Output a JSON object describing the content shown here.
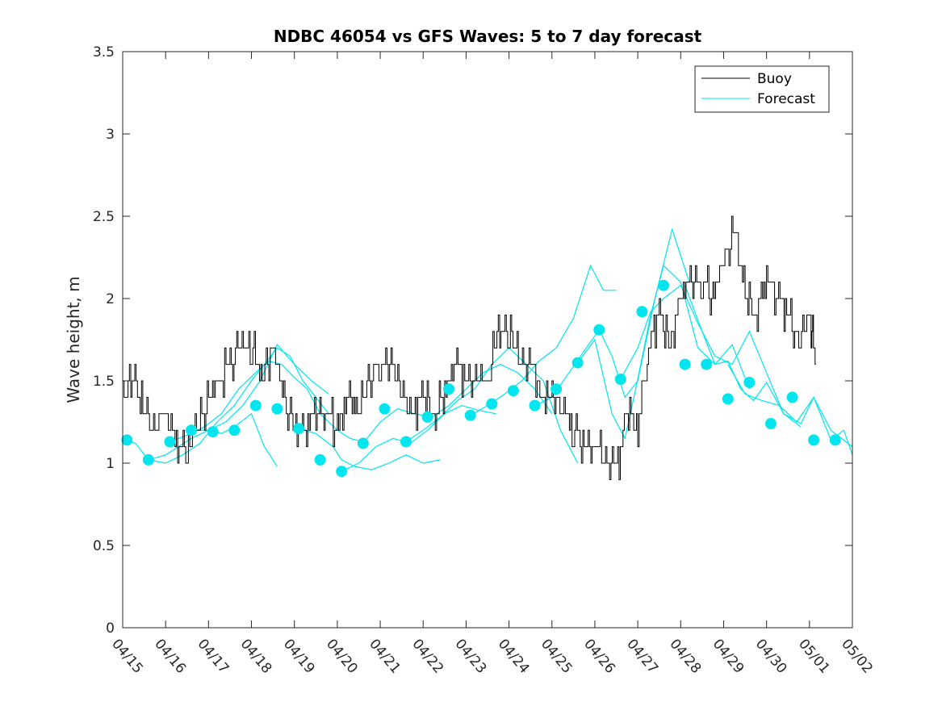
{
  "chart_data": {
    "type": "line",
    "title": "NDBC 46054 vs GFS Waves: 5 to 7 day forecast",
    "ylabel": "Wave height, m",
    "xlabel": "",
    "x_unit": "days (tick labels show MM/DD)",
    "xlim": [
      0,
      17
    ],
    "ylim": [
      0,
      3.5
    ],
    "xticks": [
      {
        "x": 0,
        "label": "04/15"
      },
      {
        "x": 1,
        "label": "04/16"
      },
      {
        "x": 2,
        "label": "04/17"
      },
      {
        "x": 3,
        "label": "04/18"
      },
      {
        "x": 4,
        "label": "04/19"
      },
      {
        "x": 5,
        "label": "04/20"
      },
      {
        "x": 6,
        "label": "04/21"
      },
      {
        "x": 7,
        "label": "04/22"
      },
      {
        "x": 8,
        "label": "04/23"
      },
      {
        "x": 9,
        "label": "04/24"
      },
      {
        "x": 10,
        "label": "04/25"
      },
      {
        "x": 11,
        "label": "04/26"
      },
      {
        "x": 12,
        "label": "04/27"
      },
      {
        "x": 13,
        "label": "04/28"
      },
      {
        "x": 14,
        "label": "04/29"
      },
      {
        "x": 15,
        "label": "04/30"
      },
      {
        "x": 16,
        "label": "05/01"
      },
      {
        "x": 17,
        "label": "05/02"
      }
    ],
    "yticks": [
      {
        "y": 0,
        "label": "0"
      },
      {
        "y": 0.5,
        "label": "0.5"
      },
      {
        "y": 1,
        "label": "1"
      },
      {
        "y": 1.5,
        "label": "1.5"
      },
      {
        "y": 2,
        "label": "2"
      },
      {
        "y": 2.5,
        "label": "2.5"
      },
      {
        "y": 3,
        "label": "3"
      },
      {
        "y": 3.5,
        "label": "3.5"
      }
    ],
    "legend": {
      "placement": "top-right",
      "entries": [
        {
          "label": "Buoy",
          "color": "#000000"
        },
        {
          "label": "Forecast",
          "color": "#00e5ee"
        }
      ]
    },
    "colors": {
      "buoy": "#000000",
      "forecast": "#00e5ee",
      "axes": "#262626"
    },
    "buoy": {
      "x": [
        0,
        0.25,
        0.5,
        0.75,
        1,
        1.25,
        1.5,
        1.75,
        2,
        2.25,
        2.5,
        2.75,
        3,
        3.25,
        3.5,
        3.75,
        4,
        4.25,
        4.5,
        4.75,
        5,
        5.25,
        5.5,
        5.75,
        6,
        6.25,
        6.5,
        6.75,
        7,
        7.25,
        7.5,
        7.75,
        8,
        8.25,
        8.5,
        8.75,
        9,
        9.25,
        9.5,
        9.75,
        10,
        10.25,
        10.5,
        10.75,
        11,
        11.25,
        11.5,
        11.75,
        12,
        12.25,
        12.5,
        12.75,
        13,
        13.25,
        13.5,
        13.75,
        14,
        14.25,
        14.5,
        14.75,
        15,
        15.25,
        15.5,
        15.75,
        16,
        16.15
      ],
      "y": [
        1.4,
        1.5,
        1.3,
        1.2,
        1.3,
        1.1,
        1.1,
        1.2,
        1.4,
        1.5,
        1.6,
        1.7,
        1.7,
        1.5,
        1.7,
        1.4,
        1.2,
        1.2,
        1.3,
        1.3,
        1.2,
        1.4,
        1.3,
        1.5,
        1.6,
        1.6,
        1.4,
        1.3,
        1.4,
        1.3,
        1.4,
        1.6,
        1.5,
        1.5,
        1.5,
        1.8,
        1.8,
        1.6,
        1.6,
        1.4,
        1.4,
        1.3,
        1.2,
        1.1,
        1.1,
        1.0,
        0.95,
        1.3,
        1.2,
        1.7,
        1.9,
        1.7,
        2.0,
        2.1,
        2.1,
        2.0,
        2.2,
        2.4,
        2.0,
        1.9,
        2.1,
        2.0,
        1.9,
        1.7,
        1.9,
        1.6
      ]
    },
    "forecast_points": {
      "x": [
        0.1,
        0.6,
        1.1,
        1.6,
        2.1,
        2.6,
        3.1,
        3.6,
        4.1,
        4.6,
        5.1,
        5.6,
        6.1,
        6.6,
        7.1,
        7.6,
        8.1,
        8.6,
        9.1,
        9.6,
        10.1,
        10.6,
        11.1,
        11.6,
        12.1,
        12.6,
        13.1,
        13.6,
        14.1,
        14.6,
        15.1,
        15.6,
        16.1,
        16.6
      ],
      "y": [
        1.14,
        1.02,
        1.13,
        1.2,
        1.19,
        1.2,
        1.35,
        1.33,
        1.21,
        1.02,
        0.95,
        1.12,
        1.33,
        1.13,
        1.28,
        1.45,
        1.29,
        1.36,
        1.44,
        1.35,
        1.45,
        1.61,
        1.81,
        1.51,
        1.92,
        2.08,
        1.6,
        1.6,
        1.39,
        1.49,
        1.24,
        1.4,
        1.14,
        1.14
      ]
    },
    "forecast_series": [
      {
        "x": [
          0,
          0.3,
          0.6,
          1,
          1.3,
          1.6,
          2,
          2.3,
          2.6,
          3,
          3.3,
          3.6
        ],
        "y": [
          1.14,
          1.12,
          1.02,
          1.05,
          1.1,
          1.15,
          1.2,
          1.18,
          1.22,
          1.3,
          1.1,
          0.98
        ]
      },
      {
        "x": [
          0.6,
          1,
          1.4,
          1.8,
          2.2,
          2.6,
          3,
          3.3,
          3.6,
          3.9,
          4.2,
          4.5,
          4.8
        ],
        "y": [
          1.02,
          1.0,
          1.05,
          1.12,
          1.25,
          1.35,
          1.5,
          1.6,
          1.7,
          1.65,
          1.5,
          1.4,
          1.3
        ]
      },
      {
        "x": [
          1.1,
          1.5,
          1.9,
          2.3,
          2.7,
          3.1,
          3.4,
          3.7,
          4,
          4.3,
          4.6,
          5,
          5.3,
          5.6
        ],
        "y": [
          1.13,
          1.17,
          1.22,
          1.3,
          1.45,
          1.55,
          1.62,
          1.6,
          1.52,
          1.45,
          1.3,
          1.2,
          1.15,
          1.13
        ]
      },
      {
        "x": [
          1.6,
          2,
          2.4,
          2.8,
          3.2,
          3.6,
          4,
          4.4,
          4.8
        ],
        "y": [
          1.2,
          1.2,
          1.25,
          1.35,
          1.5,
          1.72,
          1.6,
          1.5,
          1.42
        ]
      },
      {
        "x": [
          4.1,
          4.5,
          4.9,
          5.1,
          5.4,
          5.8,
          6.2,
          6.6,
          7,
          7.4
        ],
        "y": [
          1.21,
          1.18,
          1.1,
          1.02,
          0.98,
          0.96,
          1.0,
          1.05,
          1.0,
          1.02
        ]
      },
      {
        "x": [
          5.1,
          5.5,
          5.9,
          6.3,
          6.7,
          7.1,
          7.5,
          7.9,
          8.3,
          8.7
        ],
        "y": [
          0.95,
          1.0,
          1.1,
          1.15,
          1.12,
          1.2,
          1.3,
          1.35,
          1.32,
          1.3
        ]
      },
      {
        "x": [
          5.6,
          6,
          6.4,
          6.8,
          7.2,
          7.6,
          8,
          8.4,
          8.8,
          9.2,
          9.6,
          10
        ],
        "y": [
          1.12,
          1.25,
          1.33,
          1.3,
          1.28,
          1.35,
          1.45,
          1.55,
          1.6,
          1.55,
          1.45,
          1.3
        ]
      },
      {
        "x": [
          6.6,
          7,
          7.4,
          7.8,
          8.2,
          8.6,
          9,
          9.4,
          9.8,
          10.2,
          10.6
        ],
        "y": [
          1.13,
          1.2,
          1.28,
          1.38,
          1.45,
          1.6,
          1.7,
          1.6,
          1.5,
          1.2,
          1.0
        ]
      },
      {
        "x": [
          8.1,
          8.5,
          8.9,
          9.3,
          9.7,
          10.1,
          10.5,
          10.9,
          11.2,
          11.5
        ],
        "y": [
          1.29,
          1.35,
          1.42,
          1.5,
          1.62,
          1.7,
          1.88,
          2.2,
          2.05,
          2.05
        ]
      },
      {
        "x": [
          9.6,
          10,
          10.4,
          10.8,
          11.1,
          11.4,
          11.7,
          12,
          12.4,
          12.8,
          13.2
        ],
        "y": [
          1.35,
          1.4,
          1.55,
          1.7,
          1.81,
          1.65,
          1.4,
          1.5,
          2.0,
          2.42,
          2.1
        ]
      },
      {
        "x": [
          10.6,
          11,
          11.4,
          11.7,
          12,
          12.3,
          12.6,
          13,
          13.4,
          13.8,
          14.2,
          14.6
        ],
        "y": [
          1.61,
          1.75,
          1.3,
          1.15,
          1.51,
          1.9,
          2.2,
          2.1,
          1.7,
          1.6,
          1.72,
          1.45
        ]
      },
      {
        "x": [
          11.6,
          12,
          12.3,
          12.6,
          13,
          13.4,
          13.8,
          14.2,
          14.6,
          15,
          15.4,
          15.8
        ],
        "y": [
          1.51,
          1.7,
          1.92,
          2.0,
          2.08,
          1.85,
          1.65,
          1.6,
          1.8,
          1.55,
          1.3,
          1.22
        ]
      },
      {
        "x": [
          13.1,
          13.5,
          13.8,
          14.1,
          14.4,
          14.7,
          15,
          15.4,
          15.8,
          16.1,
          16.5,
          17
        ],
        "y": [
          2.08,
          1.8,
          1.6,
          1.62,
          1.45,
          1.38,
          1.49,
          1.3,
          1.24,
          1.4,
          1.2,
          1.1
        ]
      },
      {
        "x": [
          14.1,
          14.5,
          14.9,
          15.3,
          15.7,
          16.1,
          16.5,
          16.8,
          17
        ],
        "y": [
          1.6,
          1.42,
          1.38,
          1.35,
          1.25,
          1.4,
          1.14,
          1.2,
          1.05
        ]
      }
    ]
  }
}
